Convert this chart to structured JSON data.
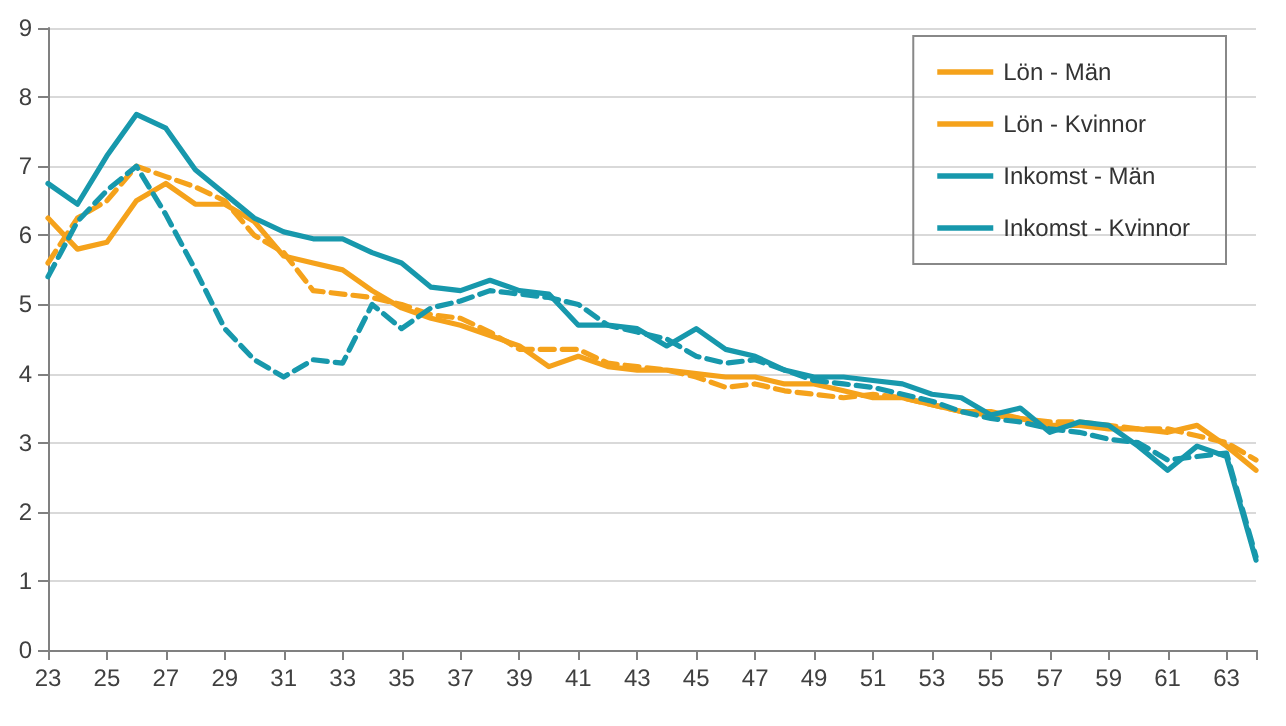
{
  "chart_data": {
    "type": "line",
    "categories": [
      "23",
      null,
      "25",
      null,
      "27",
      null,
      "29",
      null,
      "31",
      null,
      "33",
      null,
      "35",
      null,
      "37",
      null,
      "39",
      null,
      "41",
      null,
      "43",
      null,
      "45",
      null,
      "47",
      null,
      "49",
      null,
      "51",
      null,
      "53",
      null,
      "55",
      null,
      "57",
      null,
      "59",
      null,
      "61",
      null,
      "63",
      null
    ],
    "series": [
      {
        "name": "Lön - Män",
        "color": "#f5a21b",
        "line_style": "solid",
        "values": [
          6.25,
          5.8,
          5.9,
          6.5,
          6.75,
          6.45,
          6.45,
          6.2,
          5.7,
          5.6,
          5.5,
          5.2,
          4.95,
          4.8,
          4.7,
          4.55,
          4.4,
          4.1,
          4.25,
          4.1,
          4.05,
          4.05,
          4.0,
          3.95,
          3.95,
          3.85,
          3.85,
          3.75,
          3.65,
          3.65,
          3.55,
          3.45,
          3.45,
          3.35,
          3.25,
          3.25,
          3.2,
          3.2,
          3.15,
          3.25,
          2.95,
          2.6
        ]
      },
      {
        "name": "Lön - Kvinnor",
        "color": "#f5a21b",
        "line_style": "dashed",
        "values": [
          5.6,
          6.25,
          6.5,
          7.0,
          6.85,
          6.7,
          6.5,
          6.0,
          5.75,
          5.2,
          5.15,
          5.1,
          5.0,
          4.85,
          4.8,
          4.6,
          4.35,
          4.35,
          4.35,
          4.15,
          4.1,
          4.05,
          3.95,
          3.8,
          3.85,
          3.75,
          3.7,
          3.65,
          3.7,
          3.65,
          3.55,
          3.45,
          3.4,
          3.35,
          3.3,
          3.3,
          3.25,
          3.2,
          3.2,
          3.1,
          3.0,
          2.75
        ]
      },
      {
        "name": "Inkomst - Män",
        "color": "#1798ac",
        "line_style": "solid",
        "values": [
          6.75,
          6.45,
          7.15,
          7.75,
          7.55,
          6.95,
          6.6,
          6.25,
          6.05,
          5.95,
          5.95,
          5.75,
          5.6,
          5.25,
          5.2,
          5.35,
          5.2,
          5.15,
          4.7,
          4.7,
          4.65,
          4.4,
          4.65,
          4.35,
          4.25,
          4.05,
          3.95,
          3.95,
          3.9,
          3.85,
          3.7,
          3.65,
          3.4,
          3.5,
          3.15,
          3.3,
          3.25,
          2.95,
          2.6,
          2.95,
          2.8,
          1.3
        ]
      },
      {
        "name": "Inkomst - Kvinnor",
        "color": "#1798ac",
        "line_style": "dashed",
        "values": [
          5.4,
          6.2,
          6.65,
          7.0,
          6.3,
          5.5,
          4.65,
          4.2,
          3.95,
          4.2,
          4.15,
          5.0,
          4.65,
          4.95,
          5.05,
          5.2,
          5.15,
          5.1,
          5.0,
          4.7,
          4.6,
          4.5,
          4.25,
          4.15,
          4.2,
          4.05,
          3.9,
          3.85,
          3.8,
          3.7,
          3.6,
          3.45,
          3.35,
          3.3,
          3.2,
          3.15,
          3.05,
          3.0,
          2.75,
          2.8,
          2.85,
          1.35
        ]
      }
    ],
    "ylim": [
      0,
      9
    ],
    "yticks": [
      0,
      1,
      2,
      3,
      4,
      5,
      6,
      7,
      8,
      9
    ],
    "grid": "y",
    "legend": "top right",
    "marker": "none"
  }
}
